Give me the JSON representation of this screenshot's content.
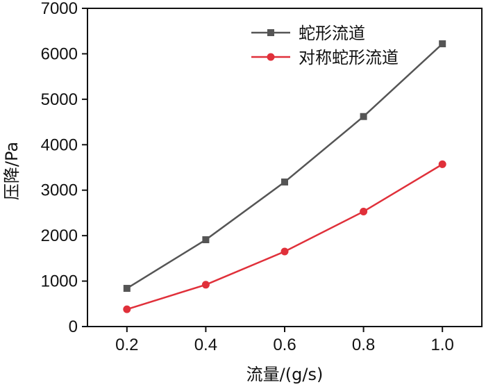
{
  "chart_data": {
    "type": "line",
    "title": "",
    "xlabel": "流量/(g/s)",
    "ylabel": "压降/Pa",
    "x": [
      0.2,
      0.4,
      0.6,
      0.8,
      1.0
    ],
    "x_tick_labels": [
      "0.2",
      "0.4",
      "0.6",
      "0.8",
      "1.0"
    ],
    "y_tick_labels": [
      "0",
      "1000",
      "2000",
      "3000",
      "4000",
      "5000",
      "6000",
      "7000"
    ],
    "xlim": [
      0.1,
      1.1
    ],
    "ylim": [
      0,
      7000
    ],
    "grid": false,
    "legend_position": "top-right",
    "series": [
      {
        "name": "蛇形流道",
        "values": [
          840,
          1910,
          3180,
          4620,
          6220
        ],
        "color": "#555555",
        "marker": "square"
      },
      {
        "name": "对称蛇形流道",
        "values": [
          380,
          920,
          1650,
          2530,
          3570
        ],
        "color": "#e0303a",
        "marker": "circle"
      }
    ]
  }
}
